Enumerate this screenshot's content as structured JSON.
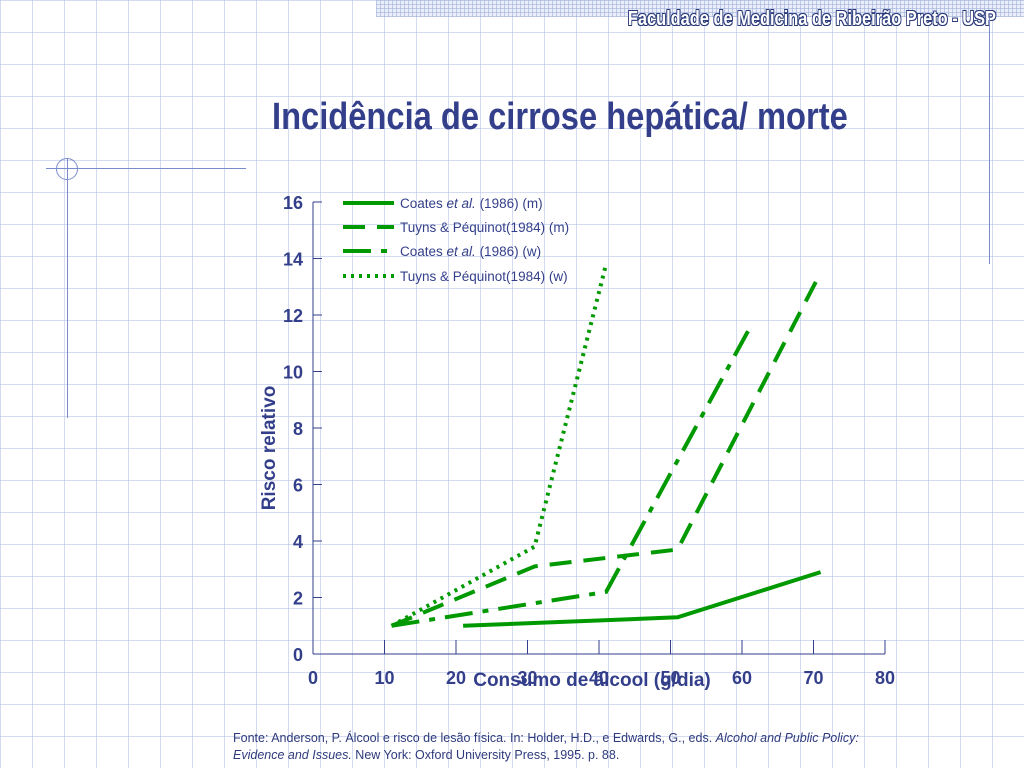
{
  "header": {
    "institution": "Faculdade de Medicina de Ribeirão Preto - USP"
  },
  "title": "Incidência de cirrose hepática/ morte",
  "source": {
    "part1": "Fonte: Anderson, P. Álcool e risco de lesão física. In: Holder, H.D., e Edwards, G., eds. ",
    "part2_italic": "Alcohol and Public Policy: Evidence and Issues.",
    "part3": " New York: Oxford University Press, 1995. p. 88."
  },
  "colors": {
    "series": "#009900",
    "text": "#333f8a",
    "axis": "#333f8a"
  },
  "chart_data": {
    "type": "line",
    "title": "",
    "xlabel": "Consumo de álcool (g/dia)",
    "ylabel": "Risco relativo",
    "xlim": [
      0,
      80
    ],
    "ylim": [
      0,
      16
    ],
    "x_ticks": [
      0,
      10,
      20,
      30,
      40,
      50,
      60,
      70,
      80
    ],
    "y_ticks": [
      0,
      2,
      4,
      6,
      8,
      10,
      12,
      14,
      16
    ],
    "legend_placement": "top-left",
    "grid": false,
    "series": [
      {
        "name_pre": "Coates ",
        "name_italic": "et al.",
        "name_post": " (1986) (m)",
        "dash": "solid",
        "points": [
          [
            21,
            1.0
          ],
          [
            51,
            1.3
          ],
          [
            71,
            2.9
          ]
        ]
      },
      {
        "name_pre": "Tuyns & Péquinot(1984) (m)",
        "name_italic": "",
        "name_post": "",
        "dash": "dashed",
        "points": [
          [
            11,
            1.0
          ],
          [
            31,
            3.1
          ],
          [
            51,
            3.7
          ],
          [
            71,
            13.5
          ]
        ]
      },
      {
        "name_pre": "Coates ",
        "name_italic": "et al.",
        "name_post": " (1986) (w)",
        "dash": "dashdot",
        "points": [
          [
            11,
            1.0
          ],
          [
            41,
            2.2
          ],
          [
            61,
            11.5
          ]
        ]
      },
      {
        "name_pre": "Tuyns & Péquinot(1984) (w)",
        "name_italic": "",
        "name_post": "",
        "dash": "dotted",
        "points": [
          [
            11,
            1.0
          ],
          [
            31,
            3.8
          ],
          [
            41,
            13.8
          ]
        ]
      }
    ]
  }
}
